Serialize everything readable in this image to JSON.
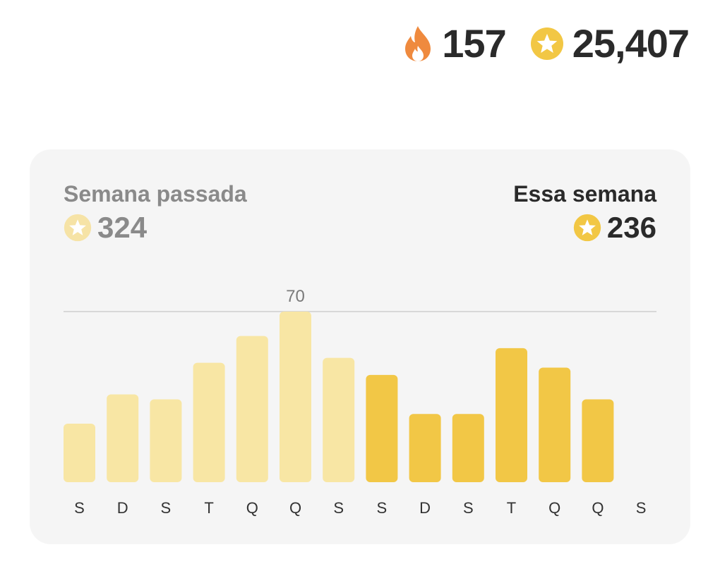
{
  "header": {
    "streak_value": "157",
    "stars_value": "25,407",
    "streak_icon": "flame-icon",
    "stars_icon": "star-coin-icon"
  },
  "summary": {
    "last_week_label": "Semana passada",
    "last_week_total": "324",
    "this_week_label": "Essa semana",
    "this_week_total": "236"
  },
  "colors": {
    "flame": "#ef8a3e",
    "coin": "#f2c744",
    "coin_faded": "#f6e3a6",
    "bar_last_week": "#f8e6a4",
    "bar_this_week": "#f2c746",
    "card_bg": "#f5f5f5",
    "gridline": "#cfcfcf"
  },
  "chart_data": {
    "type": "bar",
    "categories": [
      "S",
      "D",
      "S",
      "T",
      "Q",
      "Q",
      "S",
      "S",
      "D",
      "S",
      "T",
      "Q",
      "Q",
      "S"
    ],
    "series": [
      {
        "values": [
          24,
          36,
          34,
          49,
          60,
          70,
          51,
          null,
          null,
          null,
          null,
          null,
          null,
          null
        ]
      },
      {
        "values": [
          null,
          null,
          null,
          null,
          null,
          null,
          null,
          44,
          28,
          28,
          55,
          47,
          34,
          null
        ]
      }
    ],
    "max_line_value": 70,
    "max_line_label": "70",
    "ylim": [
      0,
      70
    ],
    "grid": false
  }
}
